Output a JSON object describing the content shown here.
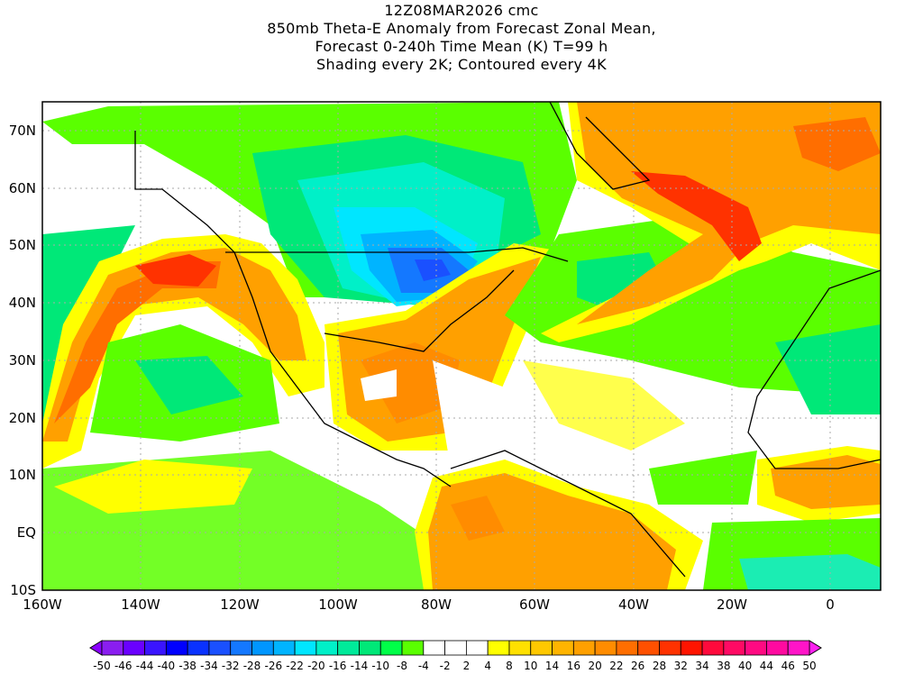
{
  "title": {
    "line1": "12Z08MAR2026 cmc",
    "line2": "850mb Theta-E Anomaly from Forecast Zonal Mean,",
    "line3": "Forecast 0-240h Time Mean (K) T=99 h",
    "line4": "Shading every 2K; Contoured every 4K"
  },
  "axes": {
    "y_ticks": [
      "70N",
      "60N",
      "50N",
      "40N",
      "30N",
      "20N",
      "10N",
      "EQ",
      "10S"
    ],
    "x_ticks": [
      "160W",
      "140W",
      "120W",
      "100W",
      "80W",
      "60W",
      "40W",
      "20W",
      "0"
    ]
  },
  "colorbar": {
    "labels": [
      "-50",
      "-46",
      "-44",
      "-40",
      "-38",
      "-34",
      "-32",
      "-28",
      "-26",
      "-22",
      "-20",
      "-16",
      "-14",
      "-10",
      "-8",
      "-4",
      "-2",
      "2",
      "4",
      "8",
      "10",
      "14",
      "16",
      "20",
      "22",
      "26",
      "28",
      "32",
      "34",
      "38",
      "40",
      "44",
      "46",
      "50"
    ],
    "colors": [
      "#8a1ef0",
      "#6a00ff",
      "#3a14ff",
      "#0000ff",
      "#0a32ff",
      "#1a50ff",
      "#1478ff",
      "#0096ff",
      "#00b4ff",
      "#00e6ff",
      "#00f0c8",
      "#00ea9a",
      "#00e878",
      "#00ff48",
      "#5aff00",
      "#ffffff",
      "#ffffff",
      "#ffffff",
      "#ffff00",
      "#ffe000",
      "#ffc800",
      "#ffb400",
      "#ffa000",
      "#ff8c00",
      "#ff6e00",
      "#ff5000",
      "#ff3200",
      "#ff1400",
      "#ff0a3c",
      "#ff0a64",
      "#ff0a82",
      "#ff0aa0",
      "#ff14c8"
    ],
    "under_color": "#8a00ff",
    "over_color": "#ff20f0"
  }
}
